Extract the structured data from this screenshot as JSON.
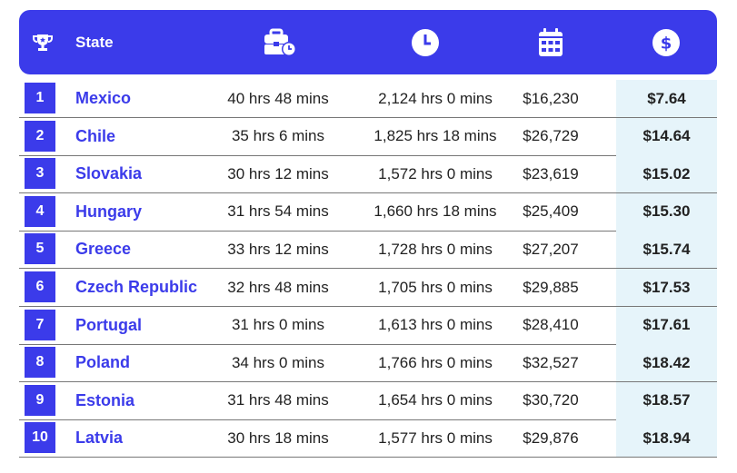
{
  "header": {
    "state_label": "State",
    "icons": [
      "trophy-icon",
      "briefcase-clock-icon",
      "clock-icon",
      "calendar-icon",
      "dollar-icon"
    ]
  },
  "colors": {
    "accent": "#3b3bea",
    "highlight": "#e6f4fa"
  },
  "rows": [
    {
      "rank": "1",
      "country": "Mexico",
      "weekly": "40 hrs 48 mins",
      "annual": "2,124 hrs 0 mins",
      "salary": "$16,230",
      "rate": "$7.64"
    },
    {
      "rank": "2",
      "country": "Chile",
      "weekly": "35 hrs 6 mins",
      "annual": "1,825 hrs 18 mins",
      "salary": "$26,729",
      "rate": "$14.64"
    },
    {
      "rank": "3",
      "country": "Slovakia",
      "weekly": "30 hrs 12 mins",
      "annual": "1,572 hrs 0 mins",
      "salary": "$23,619",
      "rate": "$15.02"
    },
    {
      "rank": "4",
      "country": "Hungary",
      "weekly": "31 hrs 54 mins",
      "annual": "1,660 hrs 18 mins",
      "salary": "$25,409",
      "rate": "$15.30"
    },
    {
      "rank": "5",
      "country": "Greece",
      "weekly": "33 hrs 12 mins",
      "annual": "1,728 hrs 0 mins",
      "salary": "$27,207",
      "rate": "$15.74"
    },
    {
      "rank": "6",
      "country": "Czech Republic",
      "weekly": "32 hrs 48 mins",
      "annual": "1,705 hrs 0 mins",
      "salary": "$29,885",
      "rate": "$17.53"
    },
    {
      "rank": "7",
      "country": "Portugal",
      "weekly": "31 hrs 0 mins",
      "annual": "1,613 hrs 0 mins",
      "salary": "$28,410",
      "rate": "$17.61"
    },
    {
      "rank": "8",
      "country": "Poland",
      "weekly": "34 hrs 0 mins",
      "annual": "1,766 hrs 0 mins",
      "salary": "$32,527",
      "rate": "$18.42"
    },
    {
      "rank": "9",
      "country": "Estonia",
      "weekly": "31 hrs 48 mins",
      "annual": "1,654 hrs 0 mins",
      "salary": "$30,720",
      "rate": "$18.57"
    },
    {
      "rank": "10",
      "country": "Latvia",
      "weekly": "30 hrs 18 mins",
      "annual": "1,577 hrs 0 mins",
      "salary": "$29,876",
      "rate": "$18.94"
    }
  ]
}
